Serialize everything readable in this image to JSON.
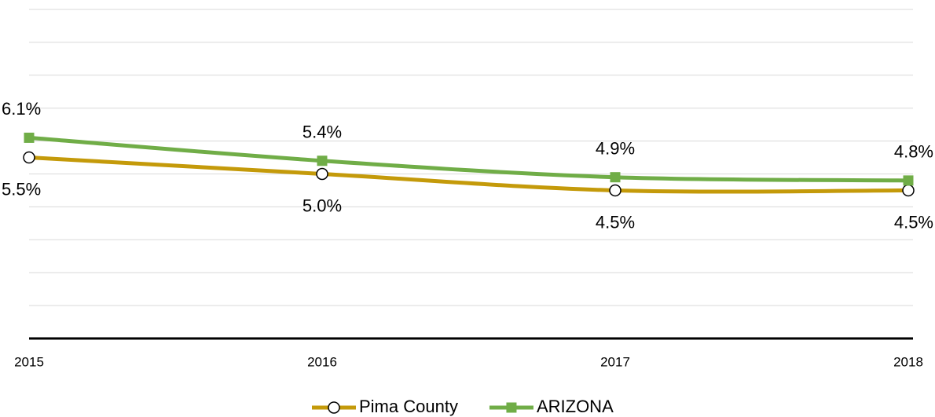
{
  "chart_data": {
    "type": "line",
    "categories": [
      "2015",
      "2016",
      "2017",
      "2018"
    ],
    "series": [
      {
        "name": "Pima County",
        "color": "#c49a0a",
        "marker": "circle",
        "values": [
          5.5,
          5.0,
          4.5,
          4.5
        ],
        "value_labels": [
          "5.5%",
          "5.0%",
          "4.5%",
          "4.5%"
        ],
        "label_position": "below"
      },
      {
        "name": "ARIZONA",
        "color": "#70ad47",
        "marker": "square",
        "values": [
          6.1,
          5.4,
          4.9,
          4.8
        ],
        "value_labels": [
          "6.1%",
          "5.4%",
          "4.9%",
          "4.8%"
        ],
        "label_position": "above"
      }
    ],
    "ylim": [
      0,
      10
    ],
    "yticks": [
      0,
      1,
      2,
      3,
      4,
      5,
      6,
      7,
      8,
      9,
      10
    ],
    "grid": true,
    "legend": "bottom"
  }
}
